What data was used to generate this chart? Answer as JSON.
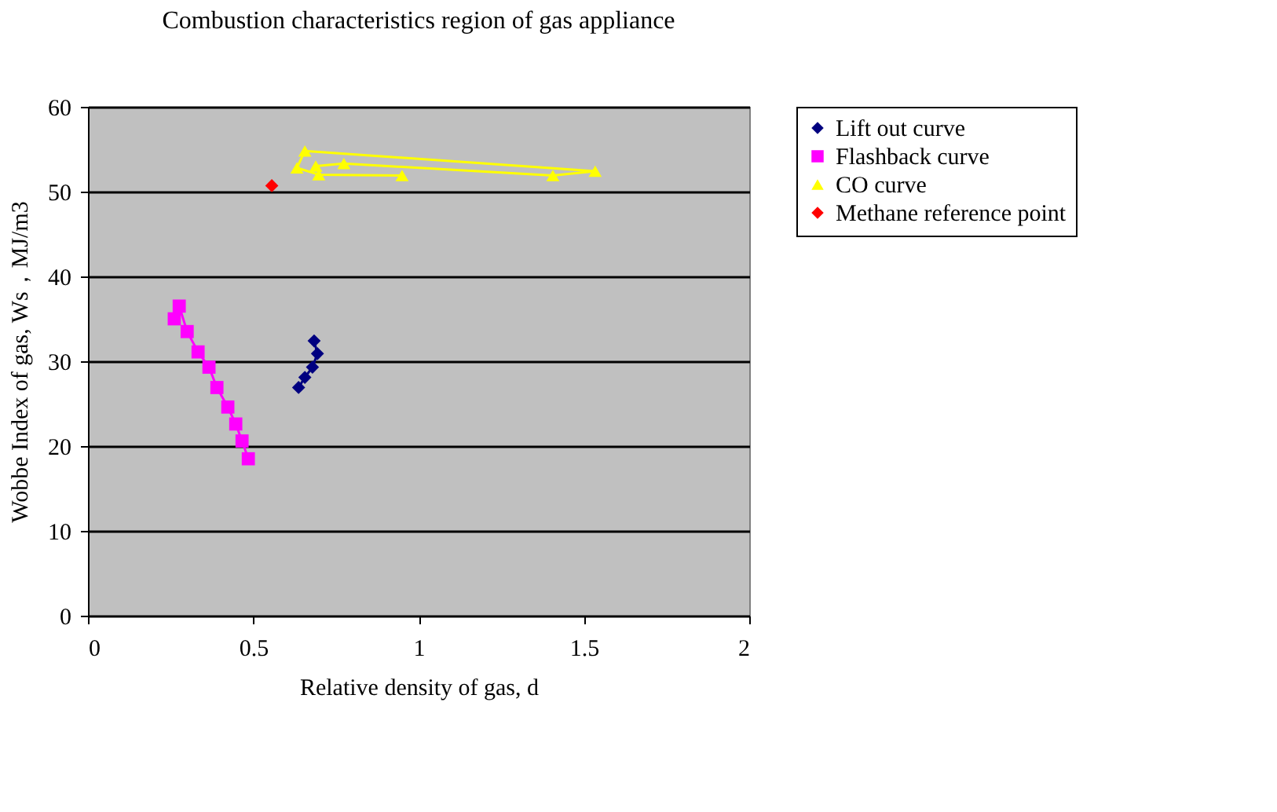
{
  "chart_data": {
    "type": "line",
    "title": "Combustion characteristics region of gas appliance",
    "xlabel": "Relative density of gas, d",
    "ylabel": "Wobbe Index of gas, Ws，MJ/m3",
    "xlim": [
      0,
      2
    ],
    "xticks": [
      0,
      0.5,
      1,
      1.5,
      2
    ],
    "ylim": [
      0,
      60
    ],
    "yticks": [
      0,
      10,
      20,
      30,
      40,
      50,
      60
    ],
    "grid": "y",
    "legend": "right",
    "series": [
      {
        "name": "Lift out curve",
        "color": "#000080",
        "marker": "diamond",
        "x": [
          0.637,
          0.656,
          0.679,
          0.694,
          0.684
        ],
        "values": [
          26.9,
          28.1,
          29.3,
          30.9,
          32.4
        ]
      },
      {
        "name": "Flashback curve",
        "color": "#ff00ff",
        "marker": "square",
        "x": [
          0.261,
          0.276,
          0.3,
          0.333,
          0.366,
          0.39,
          0.423,
          0.447,
          0.466,
          0.485
        ],
        "values": [
          35.0,
          36.5,
          33.5,
          31.1,
          29.3,
          26.9,
          24.6,
          22.6,
          20.6,
          18.5
        ]
      },
      {
        "name": "CO curve",
        "color": "#ffff00",
        "marker": "triangle",
        "x": [
          0.95,
          0.698,
          0.632,
          0.656,
          1.534,
          1.406,
          0.774,
          0.689
        ],
        "values": [
          51.9,
          52.0,
          52.8,
          54.8,
          52.4,
          51.9,
          53.3,
          53.0
        ]
      },
      {
        "name": "Methane reference point",
        "color": "#ff0000",
        "marker": "diamond",
        "x": [
          0.556
        ],
        "values": [
          50.7
        ]
      }
    ]
  }
}
